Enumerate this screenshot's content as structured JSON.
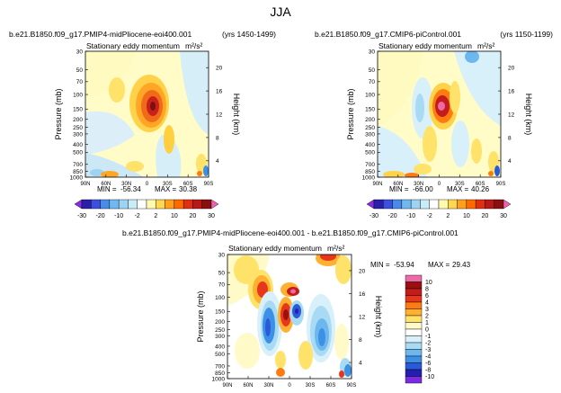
{
  "chart_data": [
    {
      "type": "heatmap",
      "id": "p1",
      "suptitle": "JJA",
      "left_title": "b.e21.B1850.f09_g17.PMIP4-midPliocene-eoi400.001",
      "right_title": "(yrs 1450-1499)",
      "subtitle": "Stationary eddy momentum",
      "units": "m²/s²",
      "xlabel": "",
      "ylabel": "Pressure (mb)",
      "ylabel2": "Height (km)",
      "x_ticks": [
        "90N",
        "60N",
        "30N",
        "0",
        "30S",
        "60S",
        "90S"
      ],
      "y_ticks": [
        "30",
        "50",
        "70",
        "100",
        "150",
        "200",
        "250",
        "300",
        "400",
        "500",
        "700",
        "850",
        "1000"
      ],
      "y2_ticks": [
        "20",
        "16",
        "12",
        "8",
        "4"
      ],
      "stats": {
        "min_label": "MIN =",
        "min": "-56.34",
        "max_label": "MAX =",
        "max": "30.38"
      },
      "colorbar": {
        "orientation": "horizontal",
        "labels": [
          "-30",
          "-20",
          "-10",
          "-2",
          "2",
          "10",
          "20",
          "30"
        ]
      }
    },
    {
      "type": "heatmap",
      "id": "p2",
      "left_title": "b.e21.B1850.f09_g17.CMIP6-piControl.001",
      "right_title": "(yrs 1150-1199)",
      "subtitle": "Stationary eddy momentum",
      "units": "m²/s²",
      "xlabel": "",
      "ylabel": "Pressure (mb)",
      "ylabel2": "Height (km)",
      "x_ticks": [
        "90N",
        "60N",
        "30N",
        "0",
        "30S",
        "60S",
        "90S"
      ],
      "y_ticks": [
        "30",
        "50",
        "70",
        "100",
        "150",
        "200",
        "250",
        "300",
        "400",
        "500",
        "700",
        "850",
        "1000"
      ],
      "y2_ticks": [
        "20",
        "16",
        "12",
        "8",
        "4"
      ],
      "stats": {
        "min_label": "MIN =",
        "min": "-66.00",
        "max_label": "MAX =",
        "max": "40.26"
      },
      "colorbar": {
        "orientation": "horizontal",
        "labels": [
          "-30",
          "-20",
          "-10",
          "-2",
          "2",
          "10",
          "20",
          "30"
        ]
      }
    },
    {
      "type": "heatmap",
      "id": "p3",
      "title": "b.e21.B1850.f09_g17.PMIP4-midPliocene-eoi400.001 - b.e21.B1850.f09_g17.CMIP6-piControl.001",
      "subtitle": "Stationary eddy momentum",
      "units": "m²/s²",
      "xlabel": "",
      "ylabel": "Pressure (mb)",
      "ylabel2": "Height (km)",
      "x_ticks": [
        "90N",
        "60N",
        "30N",
        "0",
        "30S",
        "60S",
        "90S"
      ],
      "y_ticks": [
        "30",
        "50",
        "70",
        "100",
        "150",
        "200",
        "250",
        "300",
        "400",
        "500",
        "700",
        "850",
        "1000"
      ],
      "y2_ticks": [
        "20",
        "16",
        "12",
        "8",
        "4"
      ],
      "stats": {
        "min_label": "MIN =",
        "min": "-53.94",
        "max_label": "MAX =",
        "max": "29.43"
      },
      "colorbar": {
        "orientation": "vertical",
        "labels": [
          "10",
          "8",
          "6",
          "4",
          "3",
          "2",
          "1",
          "0",
          "-1",
          "-2",
          "-3",
          "-4",
          "-6",
          "-8",
          "-10"
        ]
      }
    }
  ],
  "colors": {
    "bar1": [
      "#8a2be2",
      "#2a1fa8",
      "#3c50e0",
      "#4a8ae8",
      "#6fb8f0",
      "#9dd4f4",
      "#c8ecf8",
      "#ffffff",
      "#fffab0",
      "#ffd850",
      "#ffa018",
      "#ff6a00",
      "#e03010",
      "#b81818",
      "#8a1010",
      "#f060b0"
    ],
    "bar3": [
      "#ec6aa8",
      "#9a1010",
      "#c41c1c",
      "#e8361a",
      "#ff7a10",
      "#ffb030",
      "#ffe26a",
      "#fffac8",
      "#ffffff",
      "#d8f0fa",
      "#a8daf4",
      "#6cb8ee",
      "#3c90e6",
      "#2a5ad8",
      "#241fb0",
      "#7a2ce0"
    ]
  }
}
